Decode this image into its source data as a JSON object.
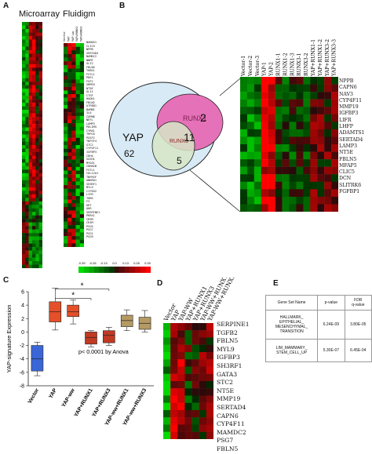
{
  "panels": {
    "a": "A",
    "b": "B",
    "c": "C",
    "d": "D",
    "e": "E"
  },
  "panelA": {
    "title_microarray": "Microarray",
    "title_fluidigm": "Fluidigm",
    "fluidigm_cols": [
      "Vector",
      "YAP",
      "YAP-ww",
      "YAP+RUNX1",
      "YAP+RUNX3"
    ],
    "genes": [
      "NANOG1",
      "CLIC5",
      "NPPB",
      "SERTAD4",
      "NAMDC2",
      "NNMT",
      "GLI2",
      "FBLN5",
      "THBS1",
      "FSTL1",
      "PDE1",
      "FGF2",
      "SMPD3",
      "NT5E",
      "GLI1",
      "CTGF",
      "HOOK1",
      "FBLN2",
      "ATP8B1",
      "BAMBI",
      "IL6",
      "CAPN6",
      "NEFL",
      "LAMP3",
      "PDLIM5",
      "CYR61",
      "TRPC6",
      "PGSF2",
      "TNFSF4",
      "STC2",
      "CYP4F11",
      "IGFBP3",
      "CDH4",
      "SGSH1",
      "MYOZ1",
      "CDKN2B",
      "FSTL1",
      "COL12A1",
      "TNFRSF",
      "ANKRD1",
      "SH3RF1",
      "MYL9",
      "CITED2",
      "LIFR",
      "THBS",
      "F3",
      "KRT",
      "UKR",
      "SERPINE1",
      "PRRX1",
      "CMTM",
      "CRIM",
      "PSG5",
      "PSG7",
      "PSG1",
      "PSG9"
    ],
    "legend_ticks": [
      "-0.39",
      "-0.26",
      "-0.13",
      "0.0",
      "0.13",
      "0.26",
      "0.39"
    ]
  },
  "panelB": {
    "venn_yap_label": "YAP",
    "venn_yap_count": "62",
    "venn_runx1_label": "RUNX1",
    "venn_runx1_count": "2",
    "venn_runx3_label": "RUNX3",
    "venn_overlap_count": "11",
    "venn_runx3_count": "5",
    "columns": [
      "Vector-1",
      "Vector-2",
      "Vector-3",
      "YAP-1",
      "YAP-2",
      "RUNX1-1",
      "RUNX1-2",
      "RUNX1-3",
      "RUNX3-1",
      "RUNX3-2",
      "YAP+RUNX1-1",
      "YAP+RUNX1-2",
      "YAP+RUNX3-2",
      "YAP+RUNX3-3"
    ],
    "genes": [
      "NPPB",
      "CAPN6",
      "NAV3",
      "CYP4F11",
      "MMP19",
      "IGFBP3",
      "LIFR",
      "LHFP",
      "ADAMTS1",
      "SERTAD4",
      "LAMP3",
      "NT5E",
      "FBLN5",
      "MFAP5",
      "CLIC5",
      "DCN",
      "SLITRK6",
      "FGFBP1"
    ]
  },
  "panelC": {
    "ylabel": "YAP-signature Expression",
    "yticks": [
      "6",
      "4",
      "2",
      "0",
      "-2",
      "-4",
      "-6",
      "-8"
    ],
    "categories": [
      "Vector",
      "YAP",
      "YAP-ww",
      "YAP+RUNX1",
      "YAP+RUNX3",
      "YAP-ww+RUNX1",
      "YAP-ww+RUNX3"
    ],
    "stat_text": "p< 0.0001 by Anova",
    "star1": "*",
    "star2": "*",
    "colors": [
      "#3a66d6",
      "#e4502a",
      "#e4502a",
      "#c03a22",
      "#c03a22",
      "#b59a63",
      "#b59a63"
    ]
  },
  "chart_data": {
    "type": "box",
    "ylabel": "YAP-signature Expression",
    "ylim": [
      -8,
      6
    ],
    "categories": [
      "Vector",
      "YAP",
      "YAP-ww",
      "YAP+RUNX1",
      "YAP+RUNX3",
      "YAP-ww+RUNX1",
      "YAP-ww+RUNX3"
    ],
    "boxes": [
      {
        "min": -6.5,
        "q1": -5.8,
        "median": -4.0,
        "q3": -2.0,
        "max": -1.5
      },
      {
        "min": 0.3,
        "q1": 1.5,
        "median": 3.0,
        "q3": 4.5,
        "max": 6.5
      },
      {
        "min": 1.2,
        "q1": 2.3,
        "median": 3.0,
        "q3": 4.0,
        "max": 4.8
      },
      {
        "min": -2.2,
        "q1": -1.8,
        "median": -0.8,
        "q3": 0.0,
        "max": 0.2
      },
      {
        "min": -2.0,
        "q1": -1.6,
        "median": -0.5,
        "q3": 0.2,
        "max": 0.7
      },
      {
        "min": 0.2,
        "q1": 0.8,
        "median": 1.7,
        "q3": 2.5,
        "max": 3.3
      },
      {
        "min": 0.0,
        "q1": 0.4,
        "median": 1.3,
        "q3": 2.2,
        "max": 3.2
      }
    ]
  },
  "panelD": {
    "columns": [
      "Vector",
      "YAP",
      "YAP-WW",
      "YAP+RUNX1",
      "YAP+RUNX3",
      "YAP-WW+RUNX1",
      "YAP-WW+RUNX3"
    ],
    "genes": [
      "SERPINE1",
      "TGFB2",
      "FBLN5",
      "MYL9",
      "IGFBP3",
      "SH3RF1",
      "GATA3",
      "STC2",
      "NT5E",
      "MMP19",
      "SERTAD4",
      "CAPN6",
      "CYP4F11",
      "MAMDC2",
      "PSG7",
      "FBLN5"
    ]
  },
  "panelE": {
    "headers": [
      "Gene Set Name",
      "p-value",
      "FDR\nq-value"
    ],
    "rows": [
      {
        "name": "HALLMARK_\nEPITHELIAL_\nMESENCHYMAL_\nTRANSITION",
        "p": "6.24E-09",
        "fdr": "3.80E-05"
      },
      {
        "name": "LIM_MAMMARY_\nSTEM_CELL_UP",
        "p": "5.30E-07",
        "fdr": "6.45E-04"
      }
    ]
  },
  "colors": {
    "red": "#e8161a",
    "green": "#1bd41b",
    "black": "#000000",
    "venn_outer": "#d8eaf5",
    "venn_runx1": "#e572b8",
    "venn_runx3": "#d7e6c6"
  }
}
